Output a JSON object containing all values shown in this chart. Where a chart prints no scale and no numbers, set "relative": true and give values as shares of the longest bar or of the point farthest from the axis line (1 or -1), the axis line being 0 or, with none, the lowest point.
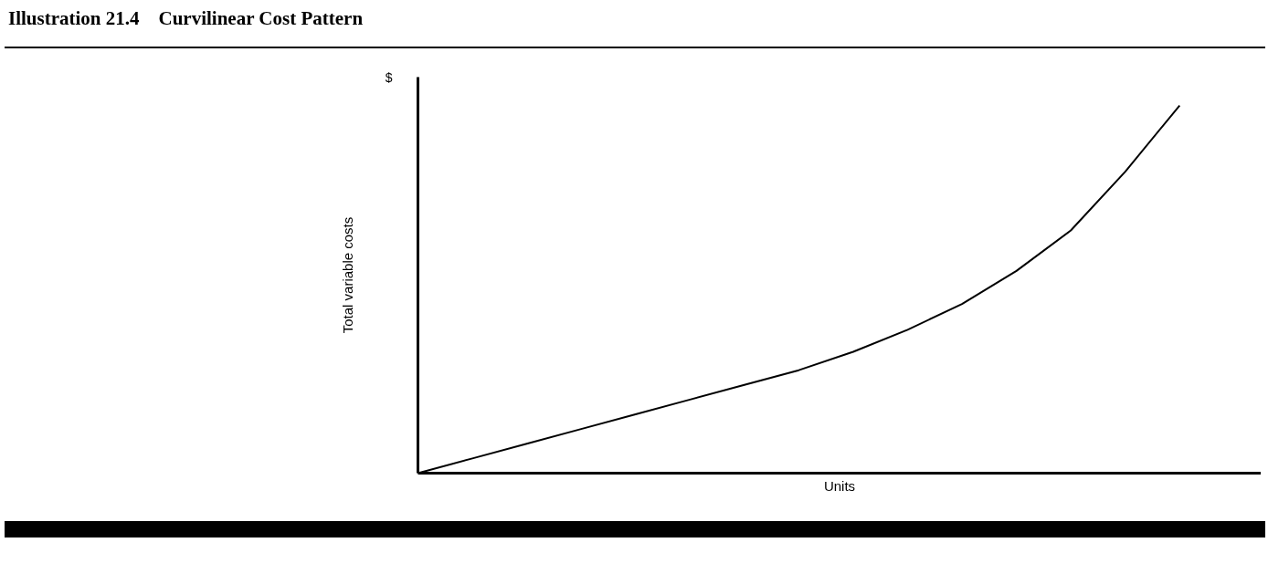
{
  "chart_data": {
    "type": "line",
    "title": "Illustration 21.4    Curvilinear Cost Pattern",
    "xlabel": "Units",
    "ylabel": "Total variable costs",
    "annotations": [
      "$"
    ],
    "relative": true,
    "tick_labels": false,
    "marker": "none",
    "line_style": "solid",
    "categories": [
      null,
      null,
      null,
      null,
      null,
      null,
      null,
      null,
      null,
      null,
      null,
      null,
      null,
      null,
      null
    ],
    "series": [
      {
        "color": "#000000",
        "values": [
          0,
          0.04,
          0.08,
          0.12,
          0.16,
          0.2,
          0.24,
          0.28,
          0.33,
          0.39,
          0.46,
          0.55,
          0.66,
          0.82,
          1
        ]
      }
    ]
  }
}
